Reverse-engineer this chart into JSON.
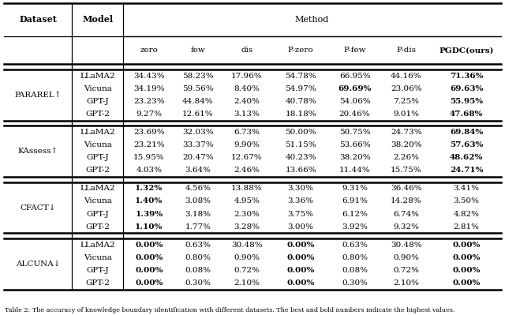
{
  "datasets": [
    "PARAREL↑",
    "KAssess↑",
    "CFACT↓",
    "ALCUNA↓"
  ],
  "models": [
    "LLaMA2",
    "Vicuna",
    "GPT-J",
    "GPT-2"
  ],
  "col_names": [
    "zero",
    "few",
    "dis",
    "P-zero",
    "P-few",
    "P-dis",
    "PGDC(ours)"
  ],
  "data": {
    "PARAREL↑": {
      "LLaMA2": [
        "34.43%",
        "58.23%",
        "17.96%",
        "54.78%",
        "66.95%",
        "44.16%",
        "71.36%"
      ],
      "Vicuna": [
        "34.19%",
        "59.56%",
        "8.40%",
        "54.97%",
        "69.69%",
        "23.06%",
        "69.63%"
      ],
      "GPT-J": [
        "23.23%",
        "44.84%",
        "2.40%",
        "40.78%",
        "54.06%",
        "7.25%",
        "55.95%"
      ],
      "GPT-2": [
        "9.27%",
        "12.61%",
        "3.13%",
        "18.18%",
        "20.46%",
        "9.01%",
        "47.68%"
      ]
    },
    "KAssess↑": {
      "LLaMA2": [
        "23.69%",
        "32.03%",
        "6.73%",
        "50.00%",
        "50.75%",
        "24.73%",
        "69.84%"
      ],
      "Vicuna": [
        "23.21%",
        "33.37%",
        "9.90%",
        "51.15%",
        "53.66%",
        "38.20%",
        "57.63%"
      ],
      "GPT-J": [
        "15.95%",
        "20.47%",
        "12.67%",
        "40.23%",
        "38.20%",
        "2.26%",
        "48.62%"
      ],
      "GPT-2": [
        "4.03%",
        "3.64%",
        "2.46%",
        "13.66%",
        "11.44%",
        "15.75%",
        "24.71%"
      ]
    },
    "CFACT↓": {
      "LLaMA2": [
        "1.32%",
        "4.56%",
        "13.88%",
        "3.30%",
        "9.31%",
        "36.46%",
        "3.41%"
      ],
      "Vicuna": [
        "1.40%",
        "3.08%",
        "4.95%",
        "3.36%",
        "6.91%",
        "14.28%",
        "3.50%"
      ],
      "GPT-J": [
        "1.39%",
        "3.18%",
        "2.30%",
        "3.75%",
        "6.12%",
        "6.74%",
        "4.82%"
      ],
      "GPT-2": [
        "1.10%",
        "1.77%",
        "3.28%",
        "3.00%",
        "3.92%",
        "9.32%",
        "2.81%"
      ]
    },
    "ALCUNA↓": {
      "LLaMA2": [
        "0.00%",
        "0.63%",
        "30.48%",
        "0.00%",
        "0.63%",
        "30.48%",
        "0.00%"
      ],
      "Vicuna": [
        "0.00%",
        "0.80%",
        "0.90%",
        "0.00%",
        "0.80%",
        "0.90%",
        "0.00%"
      ],
      "GPT-J": [
        "0.00%",
        "0.08%",
        "0.72%",
        "0.00%",
        "0.08%",
        "0.72%",
        "0.00%"
      ],
      "GPT-2": [
        "0.00%",
        "0.30%",
        "2.10%",
        "0.00%",
        "0.30%",
        "2.10%",
        "0.00%"
      ]
    }
  },
  "bold": {
    "PARAREL↑": {
      "LLaMA2": [
        6
      ],
      "Vicuna": [
        4,
        6
      ],
      "GPT-J": [
        6
      ],
      "GPT-2": [
        6
      ]
    },
    "KAssess↑": {
      "LLaMA2": [
        6
      ],
      "Vicuna": [
        6
      ],
      "GPT-J": [
        6
      ],
      "GPT-2": [
        6
      ]
    },
    "CFACT↓": {
      "LLaMA2": [
        0
      ],
      "Vicuna": [
        0
      ],
      "GPT-J": [
        0
      ],
      "GPT-2": [
        0
      ]
    },
    "ALCUNA↓": {
      "LLaMA2": [
        0,
        3,
        6
      ],
      "Vicuna": [
        0,
        3,
        6
      ],
      "GPT-J": [
        0,
        3,
        6
      ],
      "GPT-2": [
        0,
        3,
        6
      ]
    }
  },
  "caption": "Table 2: The accuracy of knowledge boundary identification with different datasets. The best and bold numbers indicate the highest values.",
  "figwidth": 6.4,
  "figheight": 3.99,
  "dpi": 100
}
